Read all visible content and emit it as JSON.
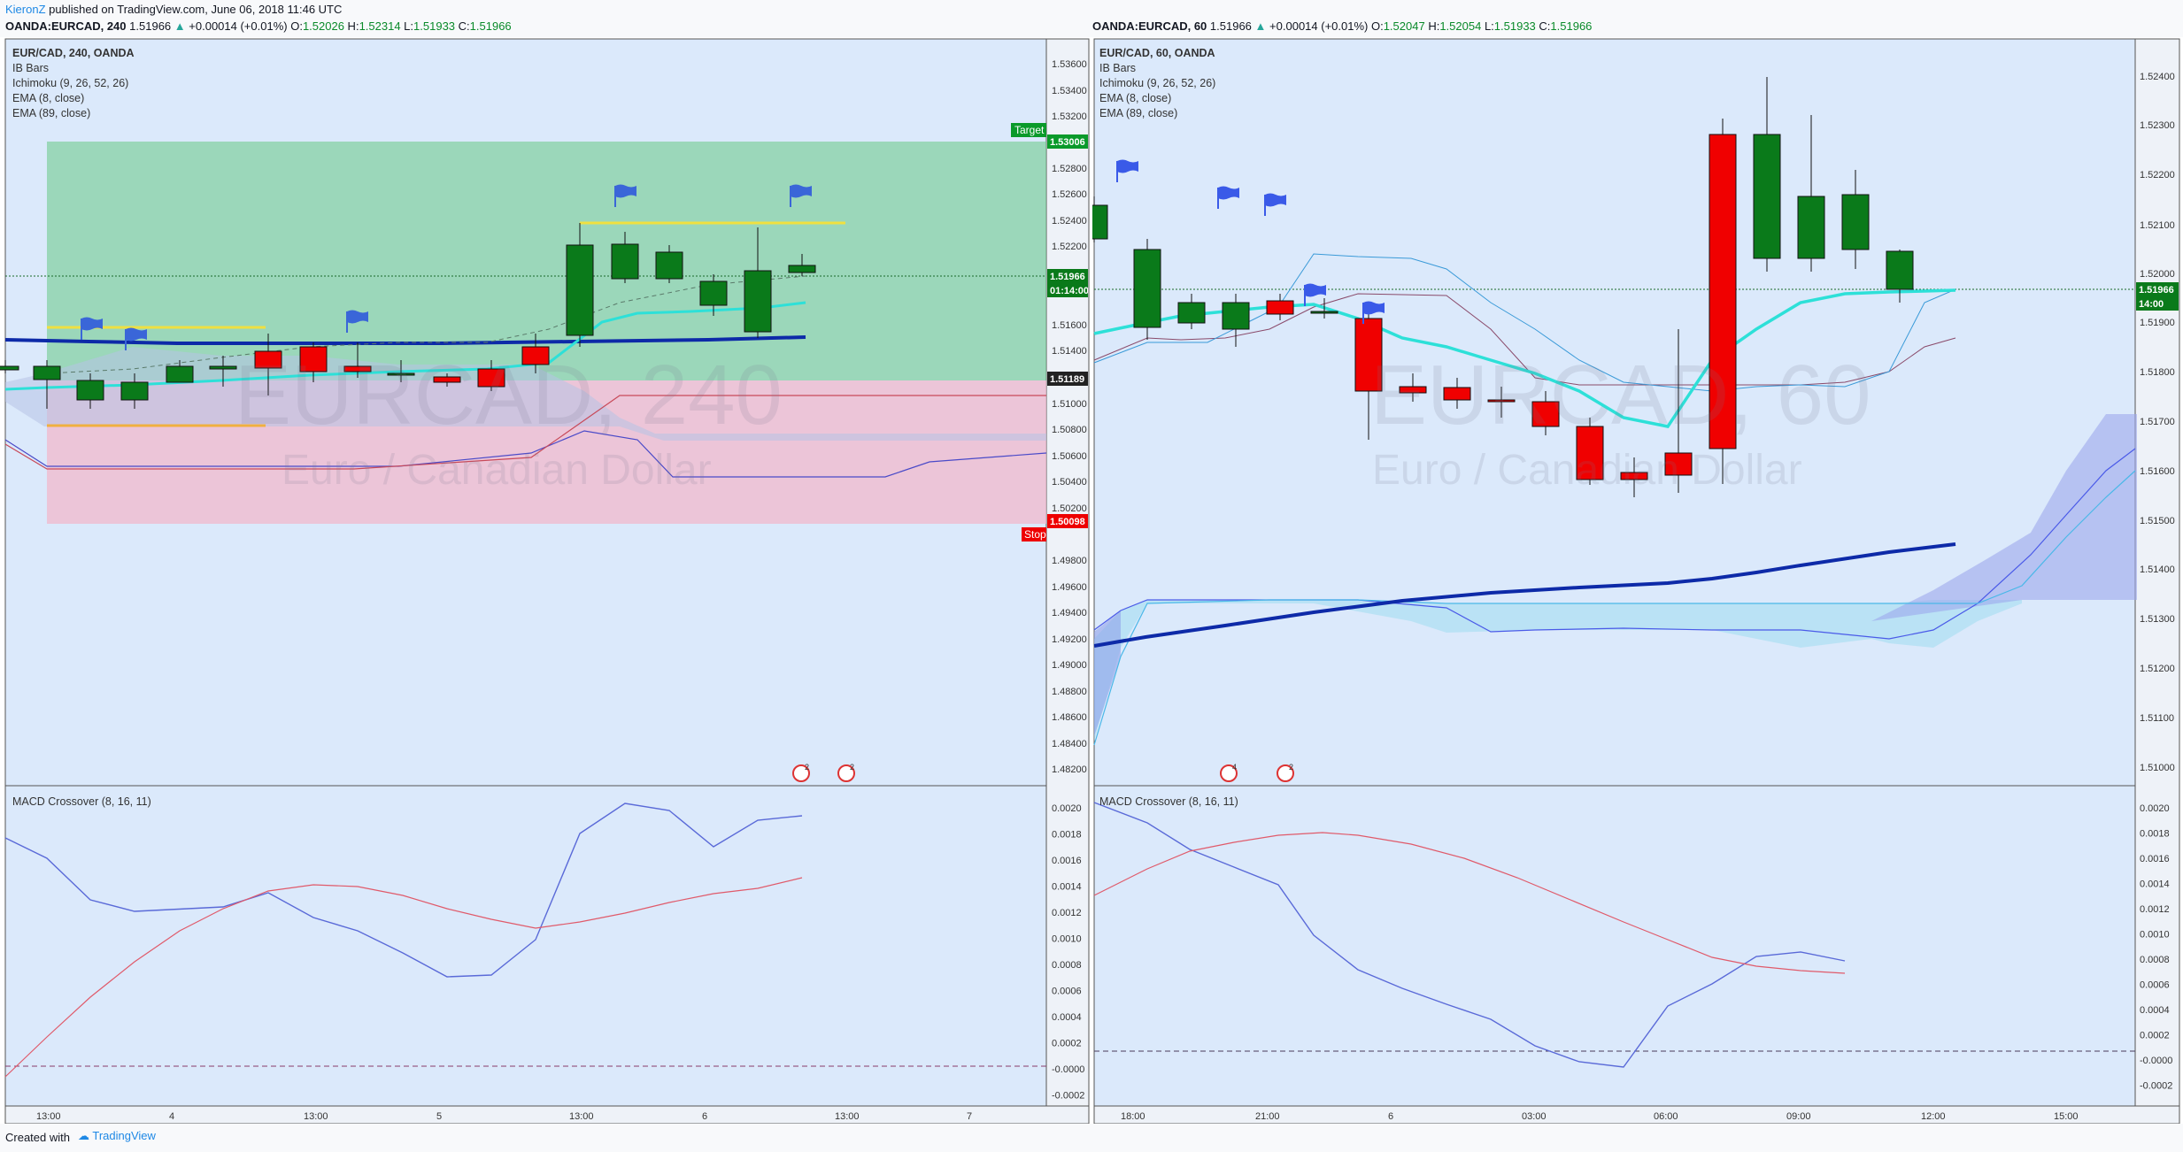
{
  "header": {
    "author": "KieronZ",
    "published_text": "published on TradingView.com, June 06, 2018 11:46 UTC",
    "left_symbol_line": "OANDA:EURCAD, 240",
    "left_price": "1.51966",
    "left_change": "+0.00014 (+0.01%)",
    "left_o": "1.52026",
    "left_h": "1.52314",
    "left_l": "1.51933",
    "left_c": "1.51966",
    "right_symbol_line": "OANDA:EURCAD, 60",
    "right_price": "1.51966",
    "right_change": "+0.00014 (+0.01%)",
    "right_o": "1.52047",
    "right_h": "1.52054",
    "right_l": "1.51933",
    "right_c": "1.51966"
  },
  "left_chart": {
    "title": "EUR/CAD, 240, OANDA",
    "legend": [
      "IB Bars",
      "Ichimoku (9, 26, 52, 26)",
      "EMA (8, close)",
      "EMA (89, close)"
    ],
    "watermark_symbol": "EURCAD, 240",
    "watermark_name": "Euro / Canadian Dollar",
    "target_label": "Target",
    "stop_label": "Stop",
    "price_axis": [
      "1.53600",
      "1.53400",
      "1.53200",
      "1.53006",
      "1.52800",
      "1.52600",
      "1.52400",
      "1.52200",
      "1.51966",
      "1.51600",
      "1.51400",
      "1.51189",
      "1.51000",
      "1.50800",
      "1.50600",
      "1.50400",
      "1.50200",
      "1.50098",
      "1.49800",
      "1.49600",
      "1.49400",
      "1.49200",
      "1.49000",
      "1.48800",
      "1.48600",
      "1.48400",
      "1.48200"
    ],
    "badges": {
      "target_price": "1.53006",
      "current_price": "1.51966",
      "countdown": "01:14:00",
      "entry_price": "1.51189",
      "stop_price": "1.50098"
    },
    "time_axis": [
      "13:00",
      "4",
      "13:00",
      "5",
      "13:00",
      "6",
      "13:00",
      "7"
    ],
    "macd_title": "MACD Crossover (8, 16, 11)",
    "macd_axis": [
      "0.0020",
      "0.0018",
      "0.0016",
      "0.0014",
      "0.0012",
      "0.0010",
      "0.0008",
      "0.0006",
      "0.0004",
      "0.0002",
      "-0.0000",
      "-0.0002"
    ],
    "event_badges": [
      "2",
      "2"
    ]
  },
  "right_chart": {
    "title": "EUR/CAD, 60, OANDA",
    "legend": [
      "IB Bars",
      "Ichimoku (9, 26, 52, 26)",
      "EMA (8, close)",
      "EMA (89, close)"
    ],
    "watermark_symbol": "EURCAD, 60",
    "watermark_name": "Euro / Canadian Dollar",
    "price_axis": [
      "1.52400",
      "1.52300",
      "1.52200",
      "1.52100",
      "1.52000",
      "1.51966",
      "1.51900",
      "1.51800",
      "1.51700",
      "1.51600",
      "1.51500",
      "1.51400",
      "1.51300",
      "1.51200",
      "1.51100",
      "1.51000"
    ],
    "badges": {
      "current_price": "1.51966",
      "countdown": "14:00"
    },
    "time_axis": [
      "18:00",
      "21:00",
      "6",
      "03:00",
      "06:00",
      "09:00",
      "12:00",
      "15:00"
    ],
    "macd_title": "MACD Crossover (8, 16, 11)",
    "macd_axis": [
      "0.0020",
      "0.0018",
      "0.0016",
      "0.0014",
      "0.0012",
      "0.0010",
      "0.0008",
      "0.0006",
      "0.0004",
      "0.0002",
      "-0.0000",
      "-0.0002"
    ],
    "event_badges": [
      "4",
      "2"
    ]
  },
  "footer": {
    "created_with": "Created with",
    "logo_text": "TradingView"
  },
  "colors": {
    "chart_bg": "#dbe9fb",
    "bull": "#0a7a1a",
    "bear": "#f00000",
    "ema_fast": "#2de0d8",
    "ema_slow": "#0d2aa8",
    "target_zone": "#7fd0a0",
    "stop_zone": "#f0b8c8",
    "macd_line": "#5a6ad8",
    "signal_line": "#e05a6a"
  }
}
